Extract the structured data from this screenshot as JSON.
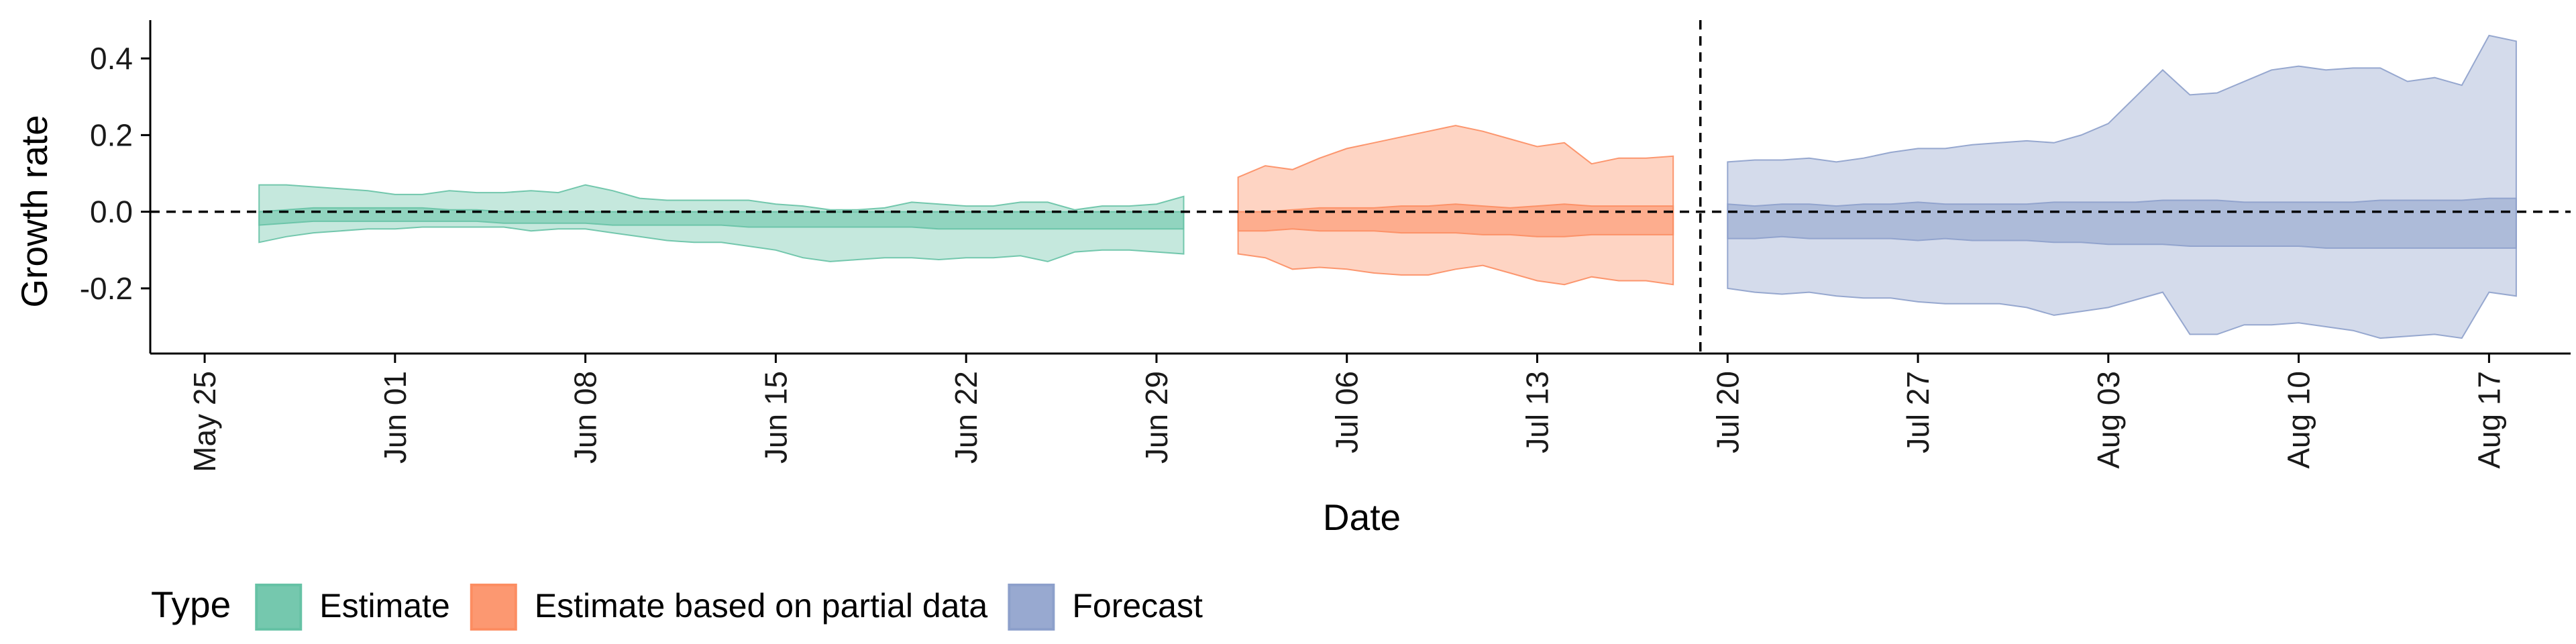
{
  "chart_data": {
    "type": "area",
    "xlabel": "Date",
    "ylabel": "Growth rate",
    "x_type": "date",
    "x_tick_labels": [
      "May 25",
      "Jun 01",
      "Jun 08",
      "Jun 15",
      "Jun 22",
      "Jun 29",
      "Jul 06",
      "Jul 13",
      "Jul 20",
      "Jul 27",
      "Aug 03",
      "Aug 10",
      "Aug 17"
    ],
    "x_tick_dates": [
      "2021-05-25",
      "2021-06-01",
      "2021-06-08",
      "2021-06-15",
      "2021-06-22",
      "2021-06-29",
      "2021-07-06",
      "2021-07-13",
      "2021-07-20",
      "2021-07-27",
      "2021-08-03",
      "2021-08-10",
      "2021-08-17"
    ],
    "xlim": [
      "2021-05-23",
      "2021-08-20"
    ],
    "y_ticks": [
      -0.2,
      0.0,
      0.2,
      0.4
    ],
    "y_tick_labels": [
      "-0.2",
      "0.0",
      "0.2",
      "0.4"
    ],
    "ylim": [
      -0.37,
      0.5
    ],
    "reference_lines": {
      "horizontal_y": 0,
      "vertical_date": "2021-07-19"
    },
    "grid": false,
    "legend": {
      "title": "Type",
      "position": "bottom-left"
    },
    "series": [
      {
        "name": "Estimate",
        "color": "#66c2a5",
        "dates": [
          "2021-05-27",
          "2021-05-28",
          "2021-05-29",
          "2021-05-30",
          "2021-05-31",
          "2021-06-01",
          "2021-06-02",
          "2021-06-03",
          "2021-06-04",
          "2021-06-05",
          "2021-06-06",
          "2021-06-07",
          "2021-06-08",
          "2021-06-09",
          "2021-06-10",
          "2021-06-11",
          "2021-06-12",
          "2021-06-13",
          "2021-06-14",
          "2021-06-15",
          "2021-06-16",
          "2021-06-17",
          "2021-06-18",
          "2021-06-19",
          "2021-06-20",
          "2021-06-21",
          "2021-06-22",
          "2021-06-23",
          "2021-06-24",
          "2021-06-25",
          "2021-06-26",
          "2021-06-27",
          "2021-06-28",
          "2021-06-29",
          "2021-06-30"
        ],
        "outer_upper": [
          0.07,
          0.07,
          0.065,
          0.06,
          0.055,
          0.045,
          0.045,
          0.055,
          0.05,
          0.05,
          0.055,
          0.05,
          0.07,
          0.055,
          0.035,
          0.03,
          0.03,
          0.03,
          0.03,
          0.02,
          0.015,
          0.005,
          0.005,
          0.01,
          0.025,
          0.02,
          0.015,
          0.015,
          0.025,
          0.025,
          0.005,
          0.015,
          0.015,
          0.02,
          0.04
        ],
        "inner_upper": [
          0.0,
          0.005,
          0.01,
          0.01,
          0.01,
          0.01,
          0.01,
          0.005,
          0.005,
          0.0,
          0.0,
          0.0,
          0.0,
          0.0,
          0.0,
          0.0,
          0.0,
          0.0,
          0.0,
          0.0,
          0.0,
          0.0,
          0.0,
          0.0,
          0.0,
          0.0,
          0.0,
          0.0,
          0.0,
          0.0,
          0.0,
          0.0,
          0.0,
          0.0,
          0.0
        ],
        "inner_lower": [
          -0.035,
          -0.03,
          -0.025,
          -0.025,
          -0.025,
          -0.025,
          -0.025,
          -0.025,
          -0.025,
          -0.03,
          -0.03,
          -0.03,
          -0.03,
          -0.035,
          -0.035,
          -0.035,
          -0.035,
          -0.035,
          -0.04,
          -0.04,
          -0.04,
          -0.04,
          -0.04,
          -0.04,
          -0.04,
          -0.045,
          -0.045,
          -0.045,
          -0.045,
          -0.045,
          -0.045,
          -0.045,
          -0.045,
          -0.045,
          -0.045
        ],
        "outer_lower": [
          -0.08,
          -0.065,
          -0.055,
          -0.05,
          -0.045,
          -0.045,
          -0.04,
          -0.04,
          -0.04,
          -0.04,
          -0.05,
          -0.045,
          -0.045,
          -0.055,
          -0.065,
          -0.075,
          -0.08,
          -0.08,
          -0.09,
          -0.1,
          -0.12,
          -0.13,
          -0.125,
          -0.12,
          -0.12,
          -0.125,
          -0.12,
          -0.12,
          -0.115,
          -0.13,
          -0.105,
          -0.1,
          -0.1,
          -0.105,
          -0.11
        ]
      },
      {
        "name": "Estimate based on partial data",
        "color": "#fc8d62",
        "dates": [
          "2021-07-02",
          "2021-07-03",
          "2021-07-04",
          "2021-07-05",
          "2021-07-06",
          "2021-07-07",
          "2021-07-08",
          "2021-07-09",
          "2021-07-10",
          "2021-07-11",
          "2021-07-12",
          "2021-07-13",
          "2021-07-14",
          "2021-07-15",
          "2021-07-16",
          "2021-07-17",
          "2021-07-18"
        ],
        "outer_upper": [
          0.09,
          0.12,
          0.11,
          0.14,
          0.165,
          0.18,
          0.195,
          0.21,
          0.225,
          0.21,
          0.19,
          0.17,
          0.18,
          0.125,
          0.14,
          0.14,
          0.145
        ],
        "inner_upper": [
          0.0,
          0.0,
          0.005,
          0.01,
          0.01,
          0.01,
          0.015,
          0.015,
          0.02,
          0.015,
          0.01,
          0.015,
          0.02,
          0.015,
          0.015,
          0.015,
          0.015
        ],
        "inner_lower": [
          -0.05,
          -0.05,
          -0.045,
          -0.05,
          -0.05,
          -0.05,
          -0.055,
          -0.055,
          -0.055,
          -0.06,
          -0.06,
          -0.065,
          -0.065,
          -0.06,
          -0.06,
          -0.06,
          -0.06
        ],
        "outer_lower": [
          -0.11,
          -0.12,
          -0.15,
          -0.145,
          -0.15,
          -0.16,
          -0.165,
          -0.165,
          -0.15,
          -0.14,
          -0.16,
          -0.18,
          -0.19,
          -0.17,
          -0.18,
          -0.18,
          -0.19
        ]
      },
      {
        "name": "Forecast",
        "color": "#8da0cb",
        "dates": [
          "2021-07-20",
          "2021-07-21",
          "2021-07-22",
          "2021-07-23",
          "2021-07-24",
          "2021-07-25",
          "2021-07-26",
          "2021-07-27",
          "2021-07-28",
          "2021-07-29",
          "2021-07-30",
          "2021-07-31",
          "2021-08-01",
          "2021-08-02",
          "2021-08-03",
          "2021-08-04",
          "2021-08-05",
          "2021-08-06",
          "2021-08-07",
          "2021-08-08",
          "2021-08-09",
          "2021-08-10",
          "2021-08-11",
          "2021-08-12",
          "2021-08-13",
          "2021-08-14",
          "2021-08-15",
          "2021-08-16",
          "2021-08-17",
          "2021-08-18"
        ],
        "outer_upper": [
          0.13,
          0.135,
          0.135,
          0.14,
          0.13,
          0.14,
          0.155,
          0.165,
          0.165,
          0.175,
          0.18,
          0.185,
          0.18,
          0.2,
          0.23,
          0.3,
          0.37,
          0.305,
          0.31,
          0.34,
          0.37,
          0.38,
          0.37,
          0.375,
          0.375,
          0.34,
          0.35,
          0.33,
          0.46,
          0.445
        ],
        "inner_upper": [
          0.02,
          0.015,
          0.02,
          0.02,
          0.015,
          0.02,
          0.02,
          0.025,
          0.02,
          0.02,
          0.02,
          0.02,
          0.025,
          0.025,
          0.025,
          0.025,
          0.03,
          0.03,
          0.03,
          0.025,
          0.025,
          0.025,
          0.025,
          0.025,
          0.03,
          0.03,
          0.03,
          0.03,
          0.035,
          0.035
        ],
        "inner_lower": [
          -0.07,
          -0.07,
          -0.065,
          -0.07,
          -0.07,
          -0.07,
          -0.07,
          -0.075,
          -0.07,
          -0.075,
          -0.075,
          -0.075,
          -0.08,
          -0.08,
          -0.085,
          -0.085,
          -0.085,
          -0.09,
          -0.09,
          -0.09,
          -0.09,
          -0.09,
          -0.095,
          -0.095,
          -0.095,
          -0.095,
          -0.095,
          -0.095,
          -0.095,
          -0.095
        ],
        "outer_lower": [
          -0.2,
          -0.21,
          -0.215,
          -0.21,
          -0.22,
          -0.225,
          -0.225,
          -0.235,
          -0.24,
          -0.24,
          -0.24,
          -0.25,
          -0.27,
          -0.26,
          -0.25,
          -0.23,
          -0.21,
          -0.32,
          -0.32,
          -0.295,
          -0.295,
          -0.29,
          -0.3,
          -0.31,
          -0.33,
          -0.325,
          -0.32,
          -0.33,
          -0.21,
          -0.22
        ]
      }
    ]
  }
}
